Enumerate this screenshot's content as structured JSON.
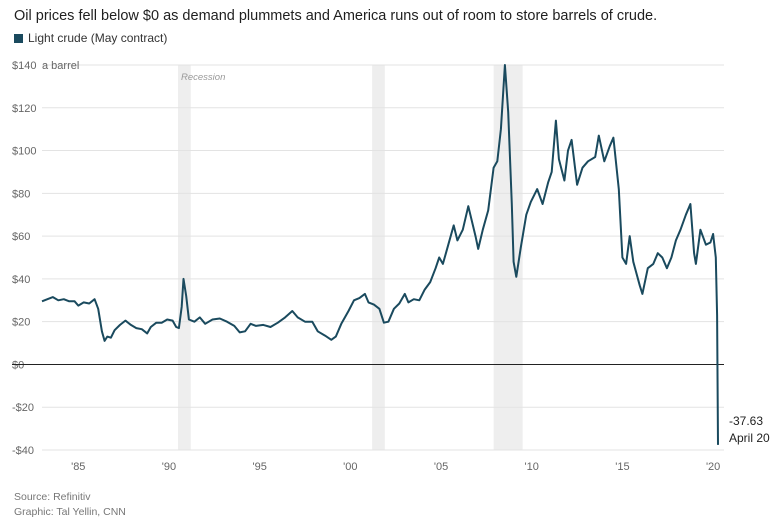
{
  "title": "Oil prices fell below $0 as demand plummets and America runs out of room to store barrels of crude.",
  "legend": {
    "label": "Light crude (May contract)",
    "color": "#1a4a5e"
  },
  "source": "Source: Refinitiv",
  "graphic": "Graphic: Tal Yellin, CNN",
  "colors": {
    "line": "#1a4a5e",
    "recession": "#eeeeee",
    "grid": "#e3e3e3",
    "zero": "#222222"
  },
  "chart_data": {
    "type": "line",
    "series": [
      {
        "name": "Light crude (May contract)",
        "points": [
          [
            1983.0,
            29.5
          ],
          [
            1983.3,
            30.5
          ],
          [
            1983.6,
            31.5
          ],
          [
            1983.9,
            30.0
          ],
          [
            1984.2,
            30.5
          ],
          [
            1984.5,
            29.5
          ],
          [
            1984.8,
            29.5
          ],
          [
            1985.0,
            27.5
          ],
          [
            1985.3,
            29.0
          ],
          [
            1985.6,
            28.5
          ],
          [
            1985.9,
            30.5
          ],
          [
            1986.1,
            26.0
          ],
          [
            1986.3,
            15.5
          ],
          [
            1986.45,
            11.0
          ],
          [
            1986.6,
            13.0
          ],
          [
            1986.8,
            12.5
          ],
          [
            1987.0,
            16.0
          ],
          [
            1987.3,
            18.5
          ],
          [
            1987.6,
            20.5
          ],
          [
            1987.9,
            18.5
          ],
          [
            1988.2,
            17.0
          ],
          [
            1988.5,
            16.5
          ],
          [
            1988.8,
            14.5
          ],
          [
            1989.0,
            17.5
          ],
          [
            1989.3,
            19.5
          ],
          [
            1989.6,
            19.5
          ],
          [
            1989.9,
            21.0
          ],
          [
            1990.2,
            20.5
          ],
          [
            1990.4,
            17.5
          ],
          [
            1990.55,
            17.0
          ],
          [
            1990.7,
            27.0
          ],
          [
            1990.8,
            40.0
          ],
          [
            1990.95,
            32.0
          ],
          [
            1991.1,
            21.0
          ],
          [
            1991.4,
            20.0
          ],
          [
            1991.7,
            22.0
          ],
          [
            1992.0,
            19.0
          ],
          [
            1992.4,
            21.0
          ],
          [
            1992.8,
            21.5
          ],
          [
            1993.2,
            20.0
          ],
          [
            1993.6,
            18.0
          ],
          [
            1993.9,
            15.0
          ],
          [
            1994.2,
            15.5
          ],
          [
            1994.5,
            19.0
          ],
          [
            1994.8,
            18.0
          ],
          [
            1995.2,
            18.5
          ],
          [
            1995.6,
            17.5
          ],
          [
            1996.0,
            19.5
          ],
          [
            1996.4,
            22.0
          ],
          [
            1996.8,
            25.0
          ],
          [
            1997.1,
            22.0
          ],
          [
            1997.5,
            20.0
          ],
          [
            1997.9,
            20.0
          ],
          [
            1998.2,
            15.5
          ],
          [
            1998.6,
            13.5
          ],
          [
            1998.95,
            11.5
          ],
          [
            1999.2,
            13.0
          ],
          [
            1999.5,
            19.0
          ],
          [
            1999.9,
            25.0
          ],
          [
            2000.2,
            30.0
          ],
          [
            2000.5,
            31.0
          ],
          [
            2000.8,
            33.0
          ],
          [
            2001.0,
            29.0
          ],
          [
            2001.3,
            28.0
          ],
          [
            2001.6,
            26.0
          ],
          [
            2001.85,
            19.5
          ],
          [
            2002.1,
            20.0
          ],
          [
            2002.4,
            26.0
          ],
          [
            2002.7,
            28.5
          ],
          [
            2003.0,
            33.0
          ],
          [
            2003.2,
            29.0
          ],
          [
            2003.5,
            30.5
          ],
          [
            2003.8,
            30.0
          ],
          [
            2004.1,
            35.0
          ],
          [
            2004.4,
            38.5
          ],
          [
            2004.7,
            45.0
          ],
          [
            2004.9,
            50.0
          ],
          [
            2005.1,
            47.0
          ],
          [
            2005.4,
            56.0
          ],
          [
            2005.7,
            65.0
          ],
          [
            2005.9,
            58.0
          ],
          [
            2006.2,
            63.0
          ],
          [
            2006.5,
            74.0
          ],
          [
            2006.9,
            60.0
          ],
          [
            2007.05,
            54.0
          ],
          [
            2007.3,
            63.0
          ],
          [
            2007.6,
            72.0
          ],
          [
            2007.9,
            92.0
          ],
          [
            2008.1,
            95.0
          ],
          [
            2008.3,
            110.0
          ],
          [
            2008.52,
            140.0
          ],
          [
            2008.7,
            118.0
          ],
          [
            2008.9,
            75.0
          ],
          [
            2009.0,
            48.0
          ],
          [
            2009.15,
            41.0
          ],
          [
            2009.4,
            55.0
          ],
          [
            2009.7,
            70.0
          ],
          [
            2009.95,
            76.0
          ],
          [
            2010.3,
            82.0
          ],
          [
            2010.6,
            75.0
          ],
          [
            2010.9,
            85.0
          ],
          [
            2011.1,
            90.0
          ],
          [
            2011.33,
            114.0
          ],
          [
            2011.5,
            96.0
          ],
          [
            2011.8,
            86.0
          ],
          [
            2012.0,
            100.0
          ],
          [
            2012.2,
            105.0
          ],
          [
            2012.5,
            84.0
          ],
          [
            2012.8,
            92.0
          ],
          [
            2013.1,
            95.0
          ],
          [
            2013.5,
            97.0
          ],
          [
            2013.7,
            107.0
          ],
          [
            2014.0,
            95.0
          ],
          [
            2014.3,
            102.0
          ],
          [
            2014.5,
            106.0
          ],
          [
            2014.8,
            82.0
          ],
          [
            2015.0,
            50.0
          ],
          [
            2015.2,
            47.0
          ],
          [
            2015.4,
            60.0
          ],
          [
            2015.6,
            48.0
          ],
          [
            2015.95,
            37.0
          ],
          [
            2016.1,
            33.0
          ],
          [
            2016.4,
            45.0
          ],
          [
            2016.7,
            47.0
          ],
          [
            2016.95,
            52.0
          ],
          [
            2017.2,
            50.0
          ],
          [
            2017.45,
            45.0
          ],
          [
            2017.7,
            50.0
          ],
          [
            2017.95,
            58.0
          ],
          [
            2018.2,
            63.0
          ],
          [
            2018.5,
            70.0
          ],
          [
            2018.75,
            75.0
          ],
          [
            2018.95,
            52.0
          ],
          [
            2019.05,
            47.0
          ],
          [
            2019.3,
            63.0
          ],
          [
            2019.6,
            56.0
          ],
          [
            2019.85,
            57.0
          ],
          [
            2020.0,
            61.0
          ],
          [
            2020.15,
            50.0
          ],
          [
            2020.22,
            23.0
          ],
          [
            2020.27,
            -37.63
          ]
        ]
      }
    ],
    "recessions": [
      [
        1990.5,
        1991.2
      ],
      [
        2001.2,
        2001.9
      ],
      [
        2007.9,
        2009.5
      ]
    ],
    "recession_label": "Recession",
    "xlim": [
      1983.0,
      2020.6
    ],
    "ylim": [
      -40,
      140
    ],
    "y_ticks": [
      -40,
      -20,
      0,
      20,
      40,
      60,
      80,
      100,
      120,
      140
    ],
    "y_tick_labels": [
      "-$40",
      "-$20",
      "$0",
      "$20",
      "$40",
      "$60",
      "$80",
      "$100",
      "$120",
      "$140"
    ],
    "y_unit": "a barrel",
    "x_ticks": [
      1985,
      1990,
      1995,
      2000,
      2005,
      2010,
      2015,
      2020
    ],
    "x_tick_labels": [
      "'85",
      "'90",
      "'95",
      "'00",
      "'05",
      "'10",
      "'15",
      "'20"
    ],
    "grid": true,
    "annotation": {
      "value": "-37.63",
      "date": "April 20"
    }
  }
}
